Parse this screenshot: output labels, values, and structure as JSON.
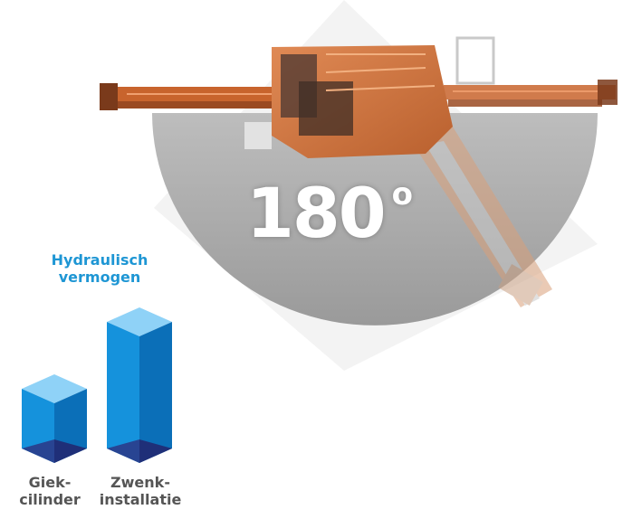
{
  "rotation": {
    "angle_value": "180",
    "angle_unit": "o"
  },
  "performance": {
    "title_line1": "Hydraulisch",
    "title_line2": "vermogen"
  },
  "chart_data": {
    "type": "bar",
    "categories": [
      "Giek-cilinder",
      "Zwenk-installatie"
    ],
    "values": [
      2,
      3.5
    ],
    "title": "Hydraulisch vermogen"
  },
  "bars": [
    {
      "label_line1": "Giek-",
      "label_line2": "cilinder"
    },
    {
      "label_line1": "Zwenk-",
      "label_line2": "installatie"
    }
  ],
  "colors": {
    "bar_front": "#1592dc",
    "bar_side": "#0b6fb8",
    "bar_top": "#8fd2f7",
    "bar_base": "#2a3c8a",
    "disc": "#a8a8a8",
    "machine": "#d87a45",
    "title": "#1e96d4"
  }
}
